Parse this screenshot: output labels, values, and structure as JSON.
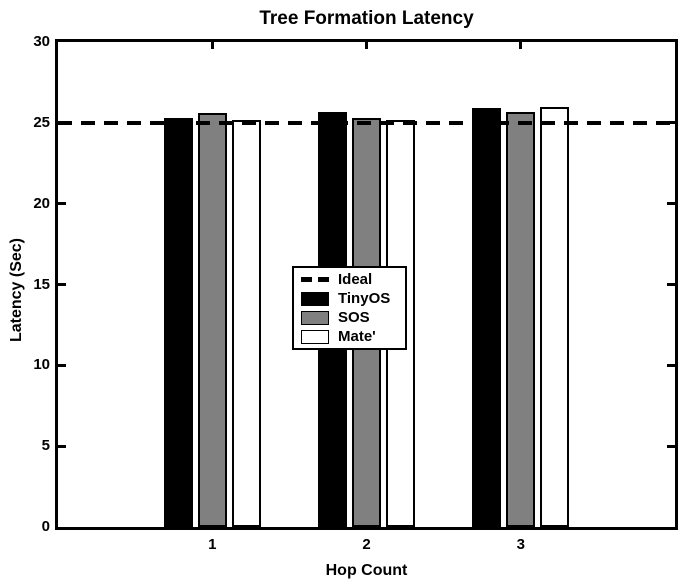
{
  "chart_data": {
    "type": "bar",
    "title": "Tree Formation Latency",
    "xlabel": "Hop Count",
    "ylabel": "Latency (Sec)",
    "categories": [
      "1",
      "2",
      "3"
    ],
    "series": [
      {
        "name": "TinyOS",
        "color": "#000000",
        "values": [
          25.3,
          25.7,
          25.9
        ]
      },
      {
        "name": "SOS",
        "color": "#808080",
        "values": [
          25.6,
          25.3,
          25.7
        ]
      },
      {
        "name": "Mate'",
        "color": "#ffffff",
        "values": [
          25.2,
          25.2,
          26.0
        ]
      }
    ],
    "reference_line": {
      "label": "Ideal",
      "value": 25,
      "style": "dashed",
      "color": "#000000"
    },
    "ylim": [
      0,
      30
    ],
    "yticks": [
      0,
      5,
      10,
      15,
      20,
      25,
      30
    ],
    "xlim": [
      0,
      4
    ],
    "grid": false,
    "legend": {
      "position": "center-inside",
      "entries": [
        "Ideal",
        "TinyOS",
        "SOS",
        "Mate'"
      ]
    },
    "axis_color": "#000000",
    "background_color": "#ffffff"
  }
}
